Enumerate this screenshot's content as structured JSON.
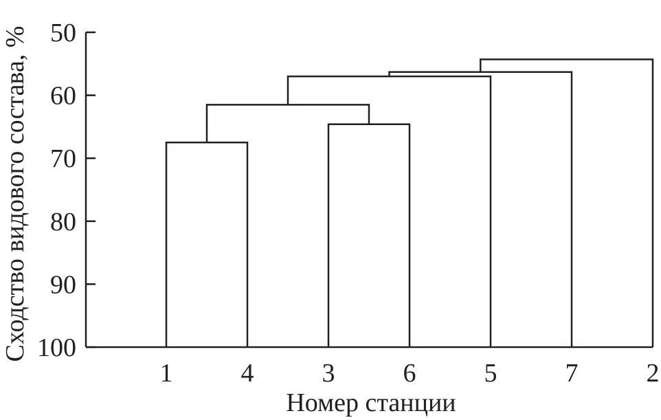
{
  "chart_data": {
    "type": "dendrogram",
    "xlabel": "Номер станции",
    "ylabel": "Сходство видового состава, %",
    "ylim": [
      50,
      100
    ],
    "y_inverted": true,
    "yticks": [
      "50",
      "60",
      "70",
      "80",
      "90",
      "100"
    ],
    "leaves": [
      "1",
      "4",
      "3",
      "6",
      "5",
      "7",
      "2"
    ],
    "merges": [
      {
        "left": "1",
        "right": "4",
        "similarity": 67.5
      },
      {
        "left": "3",
        "right": "6",
        "similarity": 64.6
      },
      {
        "left": "1,4",
        "right": "3,6",
        "similarity": 61.5
      },
      {
        "left": "1,4,3,6",
        "right": "5",
        "similarity": 57.0
      },
      {
        "left": "1,4,3,6,5",
        "right": "7",
        "similarity": 56.3
      },
      {
        "left": "1,4,3,6,5,7",
        "right": "2",
        "similarity": 54.3
      }
    ],
    "grid": false
  }
}
